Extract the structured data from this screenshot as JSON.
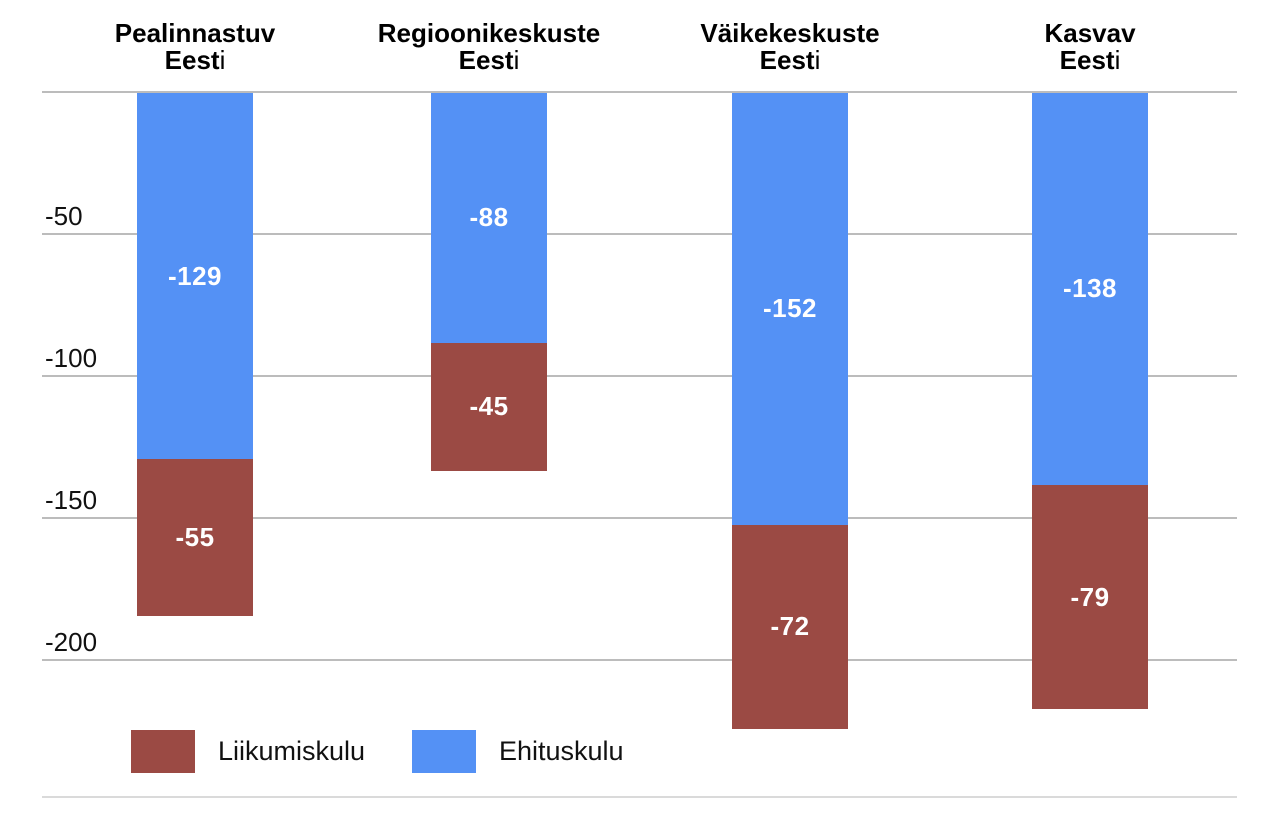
{
  "chart_data": {
    "type": "bar",
    "stacked": true,
    "direction": "negative-down",
    "title": "",
    "categories": [
      "Pealinnastuv Eesti",
      "Regioonikeskuste Eesti",
      "Väikekeskuste Eesti",
      "Kasvav Eesti"
    ],
    "category_lines": [
      [
        "Pealinnastuv",
        "Eesti"
      ],
      [
        "Regioonikeskuste",
        "Eesti"
      ],
      [
        "Väikekeskuste",
        "Eesti"
      ],
      [
        "Kasvav",
        "Eesti"
      ]
    ],
    "series": [
      {
        "name": "Ehituskulu",
        "color": "#5491f5",
        "values": [
          -129,
          -88,
          -152,
          -138
        ]
      },
      {
        "name": "Liikumiskulu",
        "color": "#9b4a44",
        "values": [
          -55,
          -45,
          -72,
          -79
        ]
      }
    ],
    "totals": [
      -184,
      -133,
      -224,
      -217
    ],
    "y_ticks": [
      -50,
      -100,
      -150,
      -200
    ],
    "ylim": [
      0,
      -250
    ],
    "grid": true,
    "legend_position": "bottom"
  },
  "legend": {
    "items": [
      {
        "label": "Liikumiskulu",
        "color": "#9b4a44"
      },
      {
        "label": "Ehituskulu",
        "color": "#5491f5"
      }
    ]
  },
  "colors": {
    "background": "#ffffff",
    "gridline": "#bcbcbc",
    "bottom_border": "#dadada",
    "text": "#000000",
    "value_label_text": "#ffffff"
  }
}
